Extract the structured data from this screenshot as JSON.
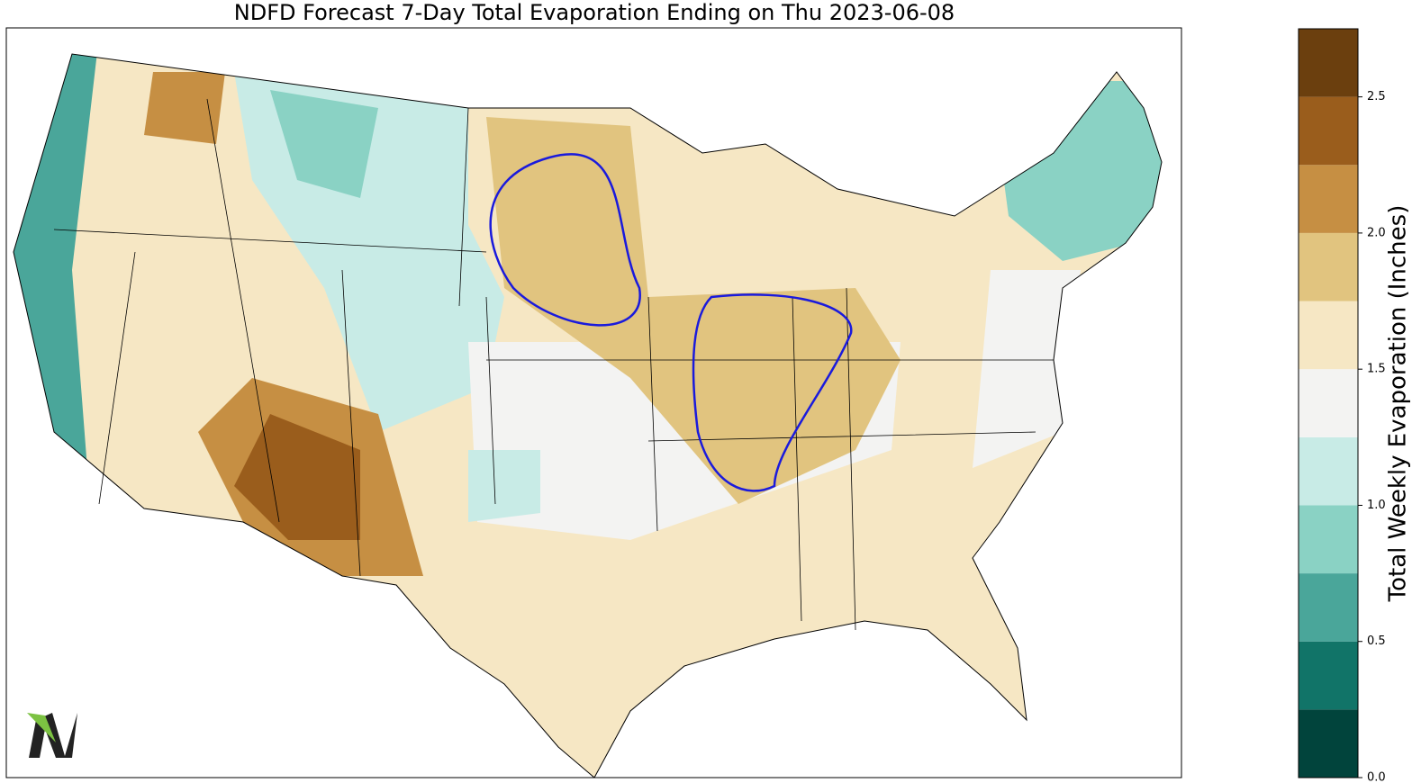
{
  "chart_data": {
    "type": "colorbar-map",
    "title": "NDFD Forecast 7-Day Total Evaporation Ending on Thu 2023-06-08",
    "colorbar_label": "Total Weekly Evaporation (Inches)",
    "levels": [
      0,
      0.25,
      0.5,
      0.75,
      1,
      1.25,
      1.5,
      1.75,
      2,
      2.25,
      2.5,
      2.75
    ],
    "colors": [
      "#01443c",
      "#117468",
      "#4aa69a",
      "#8ad2c4",
      "#c8ebe6",
      "#f3f3f2",
      "#f6e7c4",
      "#e1c47f",
      "#c68f43",
      "#9a5d1c",
      "#6b3f0e"
    ],
    "ylim": [
      0,
      2.75
    ],
    "yticks": [
      {
        "value": 0,
        "label": "0.0"
      },
      {
        "value": 0.5,
        "label": "0.5"
      },
      {
        "value": 1,
        "label": "1.0"
      },
      {
        "value": 1.5,
        "label": "1.5"
      },
      {
        "value": 2,
        "label": "2.0"
      },
      {
        "value": 2.5,
        "label": "2.5"
      }
    ]
  }
}
